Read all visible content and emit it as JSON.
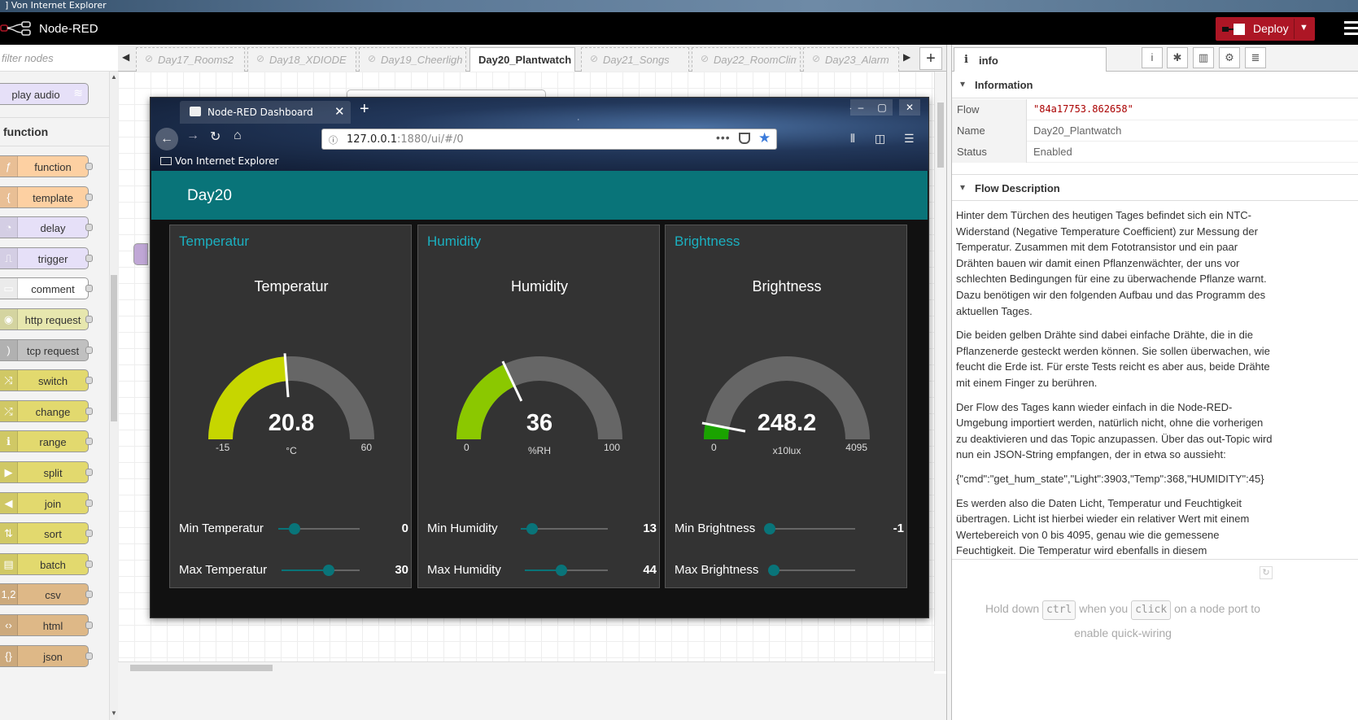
{
  "outer_window_title": "] Von Internet Explorer",
  "header": {
    "app_title": "Node-RED",
    "deploy_label": "Deploy"
  },
  "palette": {
    "filter_placeholder": "filter nodes",
    "top_node": "play audio",
    "category": "function",
    "nodes": [
      {
        "label": "function",
        "color": "#fdd0a2",
        "icon": "ƒ"
      },
      {
        "label": "template",
        "color": "#fdd0a2",
        "icon": "{"
      },
      {
        "label": "delay",
        "color": "#e6e0f8",
        "icon": "◔"
      },
      {
        "label": "trigger",
        "color": "#e6e0f8",
        "icon": "⎍"
      },
      {
        "label": "comment",
        "color": "#ffffff",
        "icon": "▭"
      },
      {
        "label": "http request",
        "color": "#e7e7ae",
        "icon": "◉"
      },
      {
        "label": "tcp request",
        "color": "#c0c0c0",
        "icon": ")"
      },
      {
        "label": "switch",
        "color": "#e2d96e",
        "icon": "⤨"
      },
      {
        "label": "change",
        "color": "#e2d96e",
        "icon": "⤮"
      },
      {
        "label": "range",
        "color": "#e2d96e",
        "icon": "ℹ"
      },
      {
        "label": "split",
        "color": "#e2d96e",
        "icon": "▶"
      },
      {
        "label": "join",
        "color": "#e2d96e",
        "icon": "◀"
      },
      {
        "label": "sort",
        "color": "#e2d96e",
        "icon": "⇅"
      },
      {
        "label": "batch",
        "color": "#e2d96e",
        "icon": "▤"
      },
      {
        "label": "csv",
        "color": "#deb887",
        "icon": "1,2"
      },
      {
        "label": "html",
        "color": "#deb887",
        "icon": "‹›"
      },
      {
        "label": "json",
        "color": "#deb887",
        "icon": "{}"
      }
    ]
  },
  "tabs": [
    {
      "label": "Day17_Rooms2",
      "active": false
    },
    {
      "label": "Day18_XDIODE",
      "active": false
    },
    {
      "label": "Day19_Cheerligh",
      "active": false
    },
    {
      "label": "Day20_Plantwatch",
      "active": true
    },
    {
      "label": "Day21_Songs",
      "active": false
    },
    {
      "label": "Day22_RoomClim",
      "active": false
    },
    {
      "label": "Day23_Alarm",
      "active": false
    }
  ],
  "sidebar": {
    "tab_label": "info",
    "information_title": "Information",
    "props": [
      {
        "key": "Flow",
        "value": "\"84a17753.862658\"",
        "mono": true
      },
      {
        "key": "Name",
        "value": "Day20_Plantwatch",
        "mono": false
      },
      {
        "key": "Status",
        "value": "Enabled",
        "mono": false
      }
    ],
    "description_title": "Flow Description",
    "description": [
      "Hinter dem Türchen des heutigen Tages befindet sich ein NTC-Widerstand (Negative Temperature Coefficient) zur Messung der Temperatur. Zusammen mit dem Fototransistor und ein paar Drähten bauen wir damit einen Pflanzenwächter, der uns vor schlechten Bedingungen für eine zu überwachende Pflanze warnt. Dazu benötigen wir den folgenden Aufbau und das Programm des aktuellen Tages.",
      "Die beiden gelben Drähte sind dabei einfache Drähte, die in die Pflanzenerde gesteckt werden können. Sie sollen überwachen, wie feucht die Erde ist. Für erste Tests reicht es aber aus, beide Drähte mit einem Finger zu berühren.",
      "Der Flow des Tages kann wieder einfach in die Node-RED-Umgebung importiert werden, natürlich nicht, ohne die vorherigen zu deaktivieren und das Topic anzupassen. Über das out-Topic wird nun ein JSON-String empfangen, der in etwa so aussieht:",
      "{\"cmd\":\"get_hum_state\",\"Light\":3903,\"Temp\":368,\"HUMIDITY\":45}",
      "Es werden also die Daten Licht, Temperatur und Feuchtigkeit übertragen. Licht ist hierbei wieder ein relativer Wert mit einem Wertebereich von 0 bis 4095, genau wie die gemessene Feuchtigkeit. Die Temperatur wird ebenfalls in diesem"
    ],
    "hint_pre": "Hold down",
    "hint_key1": "ctrl",
    "hint_mid": "when you",
    "hint_key2": "click",
    "hint_post": "on a node port to enable quick-wiring"
  },
  "browser": {
    "tab_title": "Node-RED Dashboard",
    "url_host": "127.0.0.1",
    "url_path": ":1880/ui/#/0",
    "bookmark": "Von Internet Explorer"
  },
  "dashboard": {
    "title": "Day20",
    "accent": "#097479",
    "groups": [
      {
        "title": "Temperatur",
        "label": "Temperatur",
        "value": "20.8",
        "unit": "°C",
        "min": "-15",
        "max": "60",
        "fill_fraction": 0.476,
        "gauge_color": "#c6d600",
        "sliders": [
          {
            "label": "Min Temperatur",
            "value": "0",
            "fraction": 0.2
          },
          {
            "label": "Max Temperatur",
            "value": "30",
            "fraction": 0.6
          }
        ]
      },
      {
        "title": "Humidity",
        "label": "Humidity",
        "value": "36",
        "unit": "%RH",
        "min": "0",
        "max": "100",
        "fill_fraction": 0.36,
        "gauge_color": "#8bc800",
        "sliders": [
          {
            "label": "Min Humidity",
            "value": "13",
            "fraction": 0.13
          },
          {
            "label": "Max Humidity",
            "value": "44",
            "fraction": 0.44
          }
        ]
      },
      {
        "title": "Brightness",
        "label": "Brightness",
        "value": "248.2",
        "unit": "x10lux",
        "min": "0",
        "max": "4095",
        "fill_fraction": 0.0606,
        "gauge_color": "#1aa300",
        "sliders": [
          {
            "label": "Min Brightness",
            "value": "-1",
            "fraction": 0.0
          },
          {
            "label": "Max Brightness",
            "value": "",
            "fraction": 0.0
          }
        ]
      }
    ]
  }
}
